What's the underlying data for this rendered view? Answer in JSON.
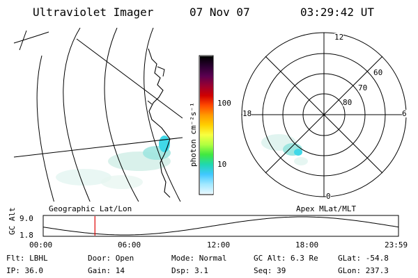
{
  "header": {
    "instrument": "Ultraviolet Imager",
    "date": "07 Nov 07",
    "time": "03:29:42 UT"
  },
  "colorbar": {
    "unit_label": "photon cm⁻²s⁻¹",
    "ticks": [
      "100",
      "10"
    ],
    "colors": [
      "#000000",
      "#2a0030",
      "#5a0050",
      "#9a0030",
      "#d00000",
      "#ff4a00",
      "#ff9a00",
      "#ffd000",
      "#f8ff40",
      "#b0ff40",
      "#40e840",
      "#20d8b0",
      "#40c8ff",
      "#a0e8ff",
      "#e8f8ff"
    ]
  },
  "left_map": {
    "caption": "Geographic Lat/Lon"
  },
  "right_map": {
    "caption": "Apex MLat/MLT",
    "mlt_labels": {
      "top": "12",
      "right": "6",
      "bottom": "0",
      "left": "18"
    },
    "lat_labels": [
      "60",
      "70",
      "80"
    ]
  },
  "timeline": {
    "axis_label": "GC Alt",
    "ymax": "9.0",
    "ymin": "1.8",
    "ticks": [
      "00:00",
      "06:00",
      "12:00",
      "18:00",
      "23:59"
    ],
    "marker_time": "03:29:42"
  },
  "footer": {
    "flt": "Flt: LBHL",
    "door": "Door: Open",
    "mode": "Mode: Normal",
    "gc_alt": "GC Alt: 6.3 Re",
    "glat": "GLat: -54.8",
    "ip": "IP: 36.0",
    "gain": "Gain: 14",
    "dsp": "Dsp:    3.1",
    "seq": "Seq: 39",
    "glon": "GLon: 237.3"
  }
}
